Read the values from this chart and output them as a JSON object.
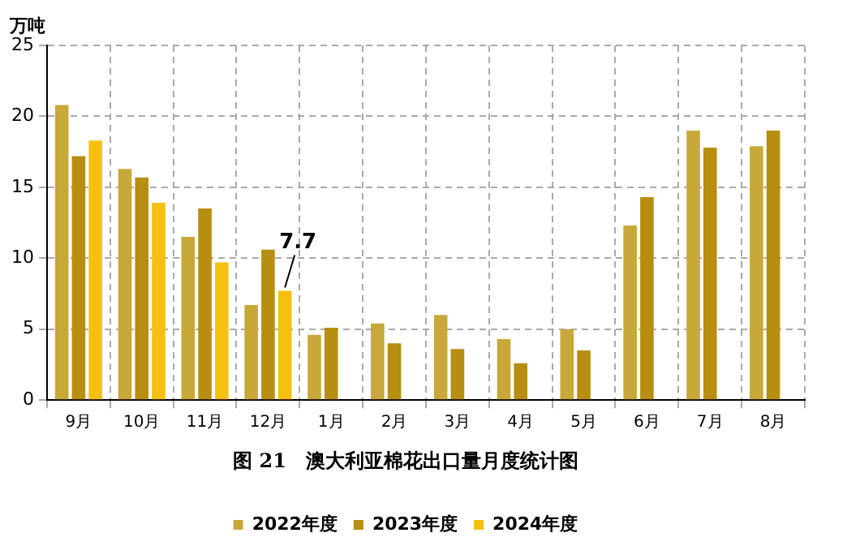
{
  "chart_data": {
    "type": "bar",
    "title": "图 21　澳大利亚棉花出口量月度统计图",
    "ylabel": "万吨",
    "categories": [
      "9月",
      "10月",
      "11月",
      "12月",
      "1月",
      "2月",
      "3月",
      "4月",
      "5月",
      "6月",
      "7月",
      "8月"
    ],
    "series": [
      {
        "name": "2022年度",
        "color": "#c9a83a",
        "values": [
          20.8,
          16.3,
          11.5,
          6.7,
          4.6,
          5.4,
          6.0,
          4.3,
          5.0,
          12.3,
          19.0,
          17.9
        ]
      },
      {
        "name": "2023年度",
        "color": "#b88e10",
        "values": [
          17.2,
          15.7,
          13.5,
          10.6,
          5.1,
          4.0,
          3.6,
          2.6,
          3.5,
          14.3,
          17.8,
          19.0
        ]
      },
      {
        "name": "2024年度",
        "color": "#f5c010",
        "values": [
          18.3,
          13.9,
          9.7,
          7.7,
          null,
          null,
          null,
          null,
          null,
          null,
          null,
          null
        ],
        "value_labels": [
          null,
          null,
          null,
          "7.7",
          null,
          null,
          null,
          null,
          null,
          null,
          null,
          null
        ]
      }
    ],
    "ylim": [
      0,
      25
    ],
    "yticks": [
      0,
      5,
      10,
      15,
      20,
      25
    ],
    "grid": true,
    "legend": "bottom"
  }
}
